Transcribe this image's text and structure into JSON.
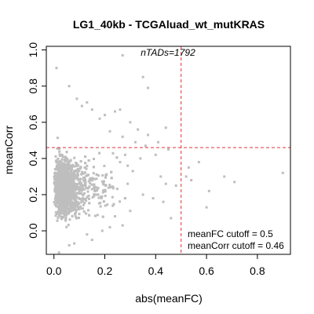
{
  "chart_data": {
    "type": "scatter",
    "title": "LG1_40kb - TCGAluad_wt_mutKRAS",
    "xlabel": "abs(meanFC)",
    "ylabel": "meanCorr",
    "xlim": [
      -0.03,
      0.93
    ],
    "ylim": [
      -0.13,
      1.02
    ],
    "x_ticks": [
      "0.0",
      "0.2",
      "0.4",
      "0.6",
      "0.8"
    ],
    "x_tick_values": [
      0.0,
      0.2,
      0.4,
      0.6,
      0.8
    ],
    "y_ticks": [
      "0.0",
      "0.2",
      "0.4",
      "0.6",
      "0.8",
      "1.0"
    ],
    "y_tick_values": [
      0.0,
      0.2,
      0.4,
      0.6,
      0.8,
      1.0
    ],
    "grid": false,
    "point_color": "#bebebe",
    "cutoff_color": "#e0303a",
    "cutoffs": {
      "meanFC": 0.5,
      "meanCorr": 0.46
    },
    "annotations": {
      "ntads": "nTADs=1792",
      "fc_cutoff": "meanFC cutoff = 0.5",
      "corr_cutoff": "meanCorr cutoff = 0.46"
    },
    "cluster": {
      "count": 1792
    },
    "points": [
      {
        "x": 0.27,
        "y": 0.97
      },
      {
        "x": 0.01,
        "y": 0.9
      },
      {
        "x": 0.35,
        "y": 0.85
      },
      {
        "x": 0.06,
        "y": 0.8
      },
      {
        "x": 0.37,
        "y": 0.79
      },
      {
        "x": 0.13,
        "y": 0.71
      },
      {
        "x": 0.15,
        "y": 0.67
      },
      {
        "x": 0.24,
        "y": 0.66
      },
      {
        "x": 0.26,
        "y": 0.67
      },
      {
        "x": 0.09,
        "y": 0.73
      },
      {
        "x": 0.11,
        "y": 0.69
      },
      {
        "x": 0.2,
        "y": 0.64
      },
      {
        "x": 0.18,
        "y": 0.62
      },
      {
        "x": 0.3,
        "y": 0.6
      },
      {
        "x": 0.33,
        "y": 0.56
      },
      {
        "x": 0.44,
        "y": 0.57
      },
      {
        "x": 0.37,
        "y": 0.53
      },
      {
        "x": 0.27,
        "y": 0.52
      },
      {
        "x": 0.32,
        "y": 0.49
      },
      {
        "x": 0.36,
        "y": 0.47
      },
      {
        "x": 0.41,
        "y": 0.49
      },
      {
        "x": 0.45,
        "y": 0.45
      },
      {
        "x": 0.22,
        "y": 0.55
      },
      {
        "x": 0.4,
        "y": 0.42
      },
      {
        "x": 0.53,
        "y": 0.35
      },
      {
        "x": 0.57,
        "y": 0.38
      },
      {
        "x": 0.52,
        "y": 0.3
      },
      {
        "x": 0.54,
        "y": 0.28
      },
      {
        "x": 0.48,
        "y": 0.25
      },
      {
        "x": 0.44,
        "y": 0.26
      },
      {
        "x": 0.42,
        "y": 0.3
      },
      {
        "x": 0.9,
        "y": 0.32
      },
      {
        "x": 0.67,
        "y": 0.3
      },
      {
        "x": 0.71,
        "y": 0.27
      },
      {
        "x": 0.61,
        "y": 0.22
      },
      {
        "x": 0.6,
        "y": 0.13
      },
      {
        "x": 0.43,
        "y": 0.16
      },
      {
        "x": 0.39,
        "y": 0.18
      },
      {
        "x": 0.35,
        "y": 0.2
      },
      {
        "x": 0.3,
        "y": 0.11
      },
      {
        "x": 0.46,
        "y": 0.07
      },
      {
        "x": 0.27,
        "y": 0.03
      },
      {
        "x": 0.22,
        "y": 0.02
      },
      {
        "x": 0.15,
        "y": -0.05
      },
      {
        "x": 0.19,
        "y": 0.0
      },
      {
        "x": 0.13,
        "y": -0.02
      },
      {
        "x": 0.08,
        "y": -0.07
      },
      {
        "x": 0.02,
        "y": -0.12
      },
      {
        "x": 0.06,
        "y": -0.08
      },
      {
        "x": 0.24,
        "y": 0.08
      },
      {
        "x": 0.29,
        "y": 0.26
      },
      {
        "x": 0.31,
        "y": 0.33
      },
      {
        "x": 0.26,
        "y": 0.38
      },
      {
        "x": 0.34,
        "y": 0.4
      },
      {
        "x": 0.28,
        "y": 0.42
      },
      {
        "x": 0.29,
        "y": 0.36
      }
    ]
  }
}
